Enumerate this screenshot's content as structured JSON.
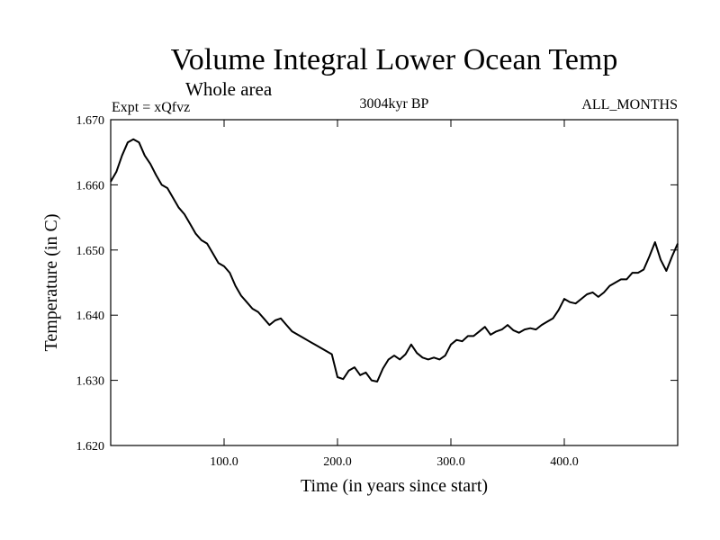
{
  "chart_data": {
    "type": "line",
    "title": "Volume Integral Lower Ocean Temp",
    "subtitle": "Whole area",
    "experiment": "Expt = xQfvz",
    "period": "3004kyr BP",
    "months": "ALL_MONTHS",
    "xlabel": "Time (in years since start)",
    "ylabel": "Temperature (in C)",
    "xlim": [
      0,
      500
    ],
    "ylim": [
      1.62,
      1.67
    ],
    "xticks": [
      100,
      200,
      300,
      400
    ],
    "xtick_labels": [
      "100.0",
      "200.0",
      "300.0",
      "400.0"
    ],
    "yticks": [
      1.62,
      1.63,
      1.64,
      1.65,
      1.66,
      1.67
    ],
    "ytick_labels": [
      "1.620",
      "1.630",
      "1.640",
      "1.650",
      "1.660",
      "1.670"
    ],
    "grid": false,
    "series": [
      {
        "name": "Volume integral lower ocean temperature",
        "x": [
          0,
          5,
          10,
          15,
          20,
          25,
          30,
          35,
          40,
          45,
          50,
          55,
          60,
          65,
          70,
          75,
          80,
          85,
          90,
          95,
          100,
          105,
          110,
          115,
          120,
          125,
          130,
          135,
          140,
          145,
          150,
          155,
          160,
          165,
          170,
          175,
          180,
          185,
          190,
          195,
          200,
          205,
          210,
          215,
          220,
          225,
          230,
          235,
          240,
          245,
          250,
          255,
          260,
          265,
          270,
          275,
          280,
          285,
          290,
          295,
          300,
          305,
          310,
          315,
          320,
          325,
          330,
          335,
          340,
          345,
          350,
          355,
          360,
          365,
          370,
          375,
          380,
          385,
          390,
          395,
          400,
          405,
          410,
          415,
          420,
          425,
          430,
          435,
          440,
          445,
          450,
          455,
          460,
          465,
          470,
          475,
          480,
          485,
          490,
          495,
          500
        ],
        "values": [
          1.6605,
          1.662,
          1.6645,
          1.6665,
          1.667,
          1.6665,
          1.6645,
          1.6632,
          1.6615,
          1.66,
          1.6595,
          1.658,
          1.6565,
          1.6555,
          1.654,
          1.6525,
          1.6515,
          1.651,
          1.6495,
          1.648,
          1.6475,
          1.6465,
          1.6445,
          1.643,
          1.642,
          1.641,
          1.6405,
          1.6395,
          1.6385,
          1.6392,
          1.6395,
          1.6385,
          1.6375,
          1.637,
          1.6365,
          1.636,
          1.6355,
          1.635,
          1.6345,
          1.634,
          1.6305,
          1.6302,
          1.6315,
          1.632,
          1.6308,
          1.6312,
          1.63,
          1.6298,
          1.6318,
          1.6332,
          1.6338,
          1.6332,
          1.634,
          1.6355,
          1.6342,
          1.6335,
          1.6332,
          1.6335,
          1.6332,
          1.6338,
          1.6355,
          1.6362,
          1.636,
          1.6368,
          1.6368,
          1.6375,
          1.6382,
          1.637,
          1.6375,
          1.6378,
          1.6385,
          1.6377,
          1.6373,
          1.6378,
          1.638,
          1.6378,
          1.6385,
          1.639,
          1.6395,
          1.6408,
          1.6425,
          1.642,
          1.6418,
          1.6425,
          1.6432,
          1.6435,
          1.6428,
          1.6435,
          1.6445,
          1.645,
          1.6455,
          1.6455,
          1.6465,
          1.6465,
          1.647,
          1.649,
          1.6512,
          1.6485,
          1.6468,
          1.649,
          1.651
        ]
      }
    ]
  }
}
